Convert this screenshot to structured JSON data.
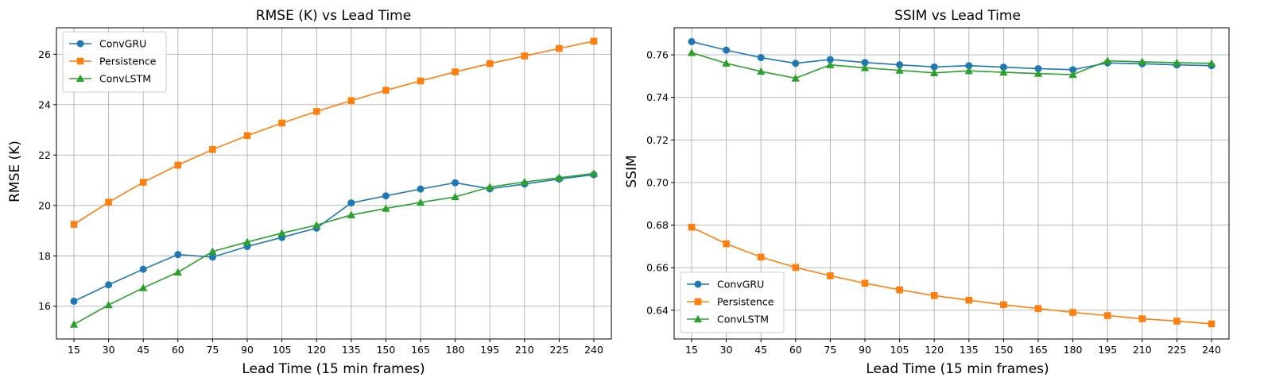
{
  "colors": {
    "ConvGRU": "#1f77b4",
    "Persistence": "#ff7f0e",
    "ConvLSTM": "#2ca02c",
    "grid": "#b0b0b0"
  },
  "chart_data": [
    {
      "type": "line",
      "title": "RMSE (K) vs Lead Time",
      "xlabel": "Lead Time (15 min frames)",
      "ylabel": "RMSE (K)",
      "x": [
        15,
        30,
        45,
        60,
        75,
        90,
        105,
        120,
        135,
        150,
        165,
        180,
        195,
        210,
        225,
        240
      ],
      "yticks": [
        16,
        18,
        20,
        22,
        24,
        26
      ],
      "ylim": [
        14.7,
        27.05
      ],
      "grid": true,
      "legend": "upper left",
      "series": [
        {
          "name": "ConvGRU",
          "marker": "circle",
          "values": [
            16.2,
            16.85,
            17.47,
            18.05,
            17.95,
            18.37,
            18.73,
            19.1,
            20.1,
            20.38,
            20.65,
            20.9,
            20.66,
            20.85,
            21.05,
            21.22
          ]
        },
        {
          "name": "Persistence",
          "marker": "square",
          "values": [
            19.25,
            20.13,
            20.92,
            21.6,
            22.22,
            22.77,
            23.27,
            23.73,
            24.16,
            24.57,
            24.94,
            25.3,
            25.63,
            25.93,
            26.23,
            26.52
          ]
        },
        {
          "name": "ConvLSTM",
          "marker": "triangle",
          "values": [
            15.28,
            16.05,
            16.73,
            17.35,
            18.17,
            18.55,
            18.9,
            19.22,
            19.62,
            19.88,
            20.12,
            20.34,
            20.73,
            20.93,
            21.1,
            21.27
          ]
        }
      ]
    },
    {
      "type": "line",
      "title": "SSIM vs Lead Time",
      "xlabel": "Lead Time (15 min frames)",
      "ylabel": "SSIM",
      "x": [
        15,
        30,
        45,
        60,
        75,
        90,
        105,
        120,
        135,
        150,
        165,
        180,
        195,
        210,
        225,
        240
      ],
      "yticks": [
        0.64,
        0.66,
        0.68,
        0.7,
        0.72,
        0.74,
        0.76
      ],
      "ylim": [
        0.6265,
        0.7727
      ],
      "grid": true,
      "legend": "lower left",
      "series": [
        {
          "name": "ConvGRU",
          "marker": "circle",
          "values": [
            0.7662,
            0.7622,
            0.7587,
            0.756,
            0.7578,
            0.7564,
            0.7553,
            0.7543,
            0.7549,
            0.7542,
            0.7535,
            0.753,
            0.7562,
            0.7558,
            0.7553,
            0.7549
          ]
        },
        {
          "name": "Persistence",
          "marker": "square",
          "values": [
            0.679,
            0.6712,
            0.665,
            0.6601,
            0.6562,
            0.6527,
            0.6496,
            0.6469,
            0.6447,
            0.6426,
            0.6408,
            0.639,
            0.6375,
            0.636,
            0.6349,
            0.6336
          ]
        },
        {
          "name": "ConvLSTM",
          "marker": "triangle",
          "values": [
            0.761,
            0.756,
            0.7522,
            0.749,
            0.7553,
            0.7539,
            0.7527,
            0.7515,
            0.7525,
            0.7518,
            0.7512,
            0.7507,
            0.7572,
            0.7567,
            0.7563,
            0.756
          ]
        }
      ]
    }
  ]
}
